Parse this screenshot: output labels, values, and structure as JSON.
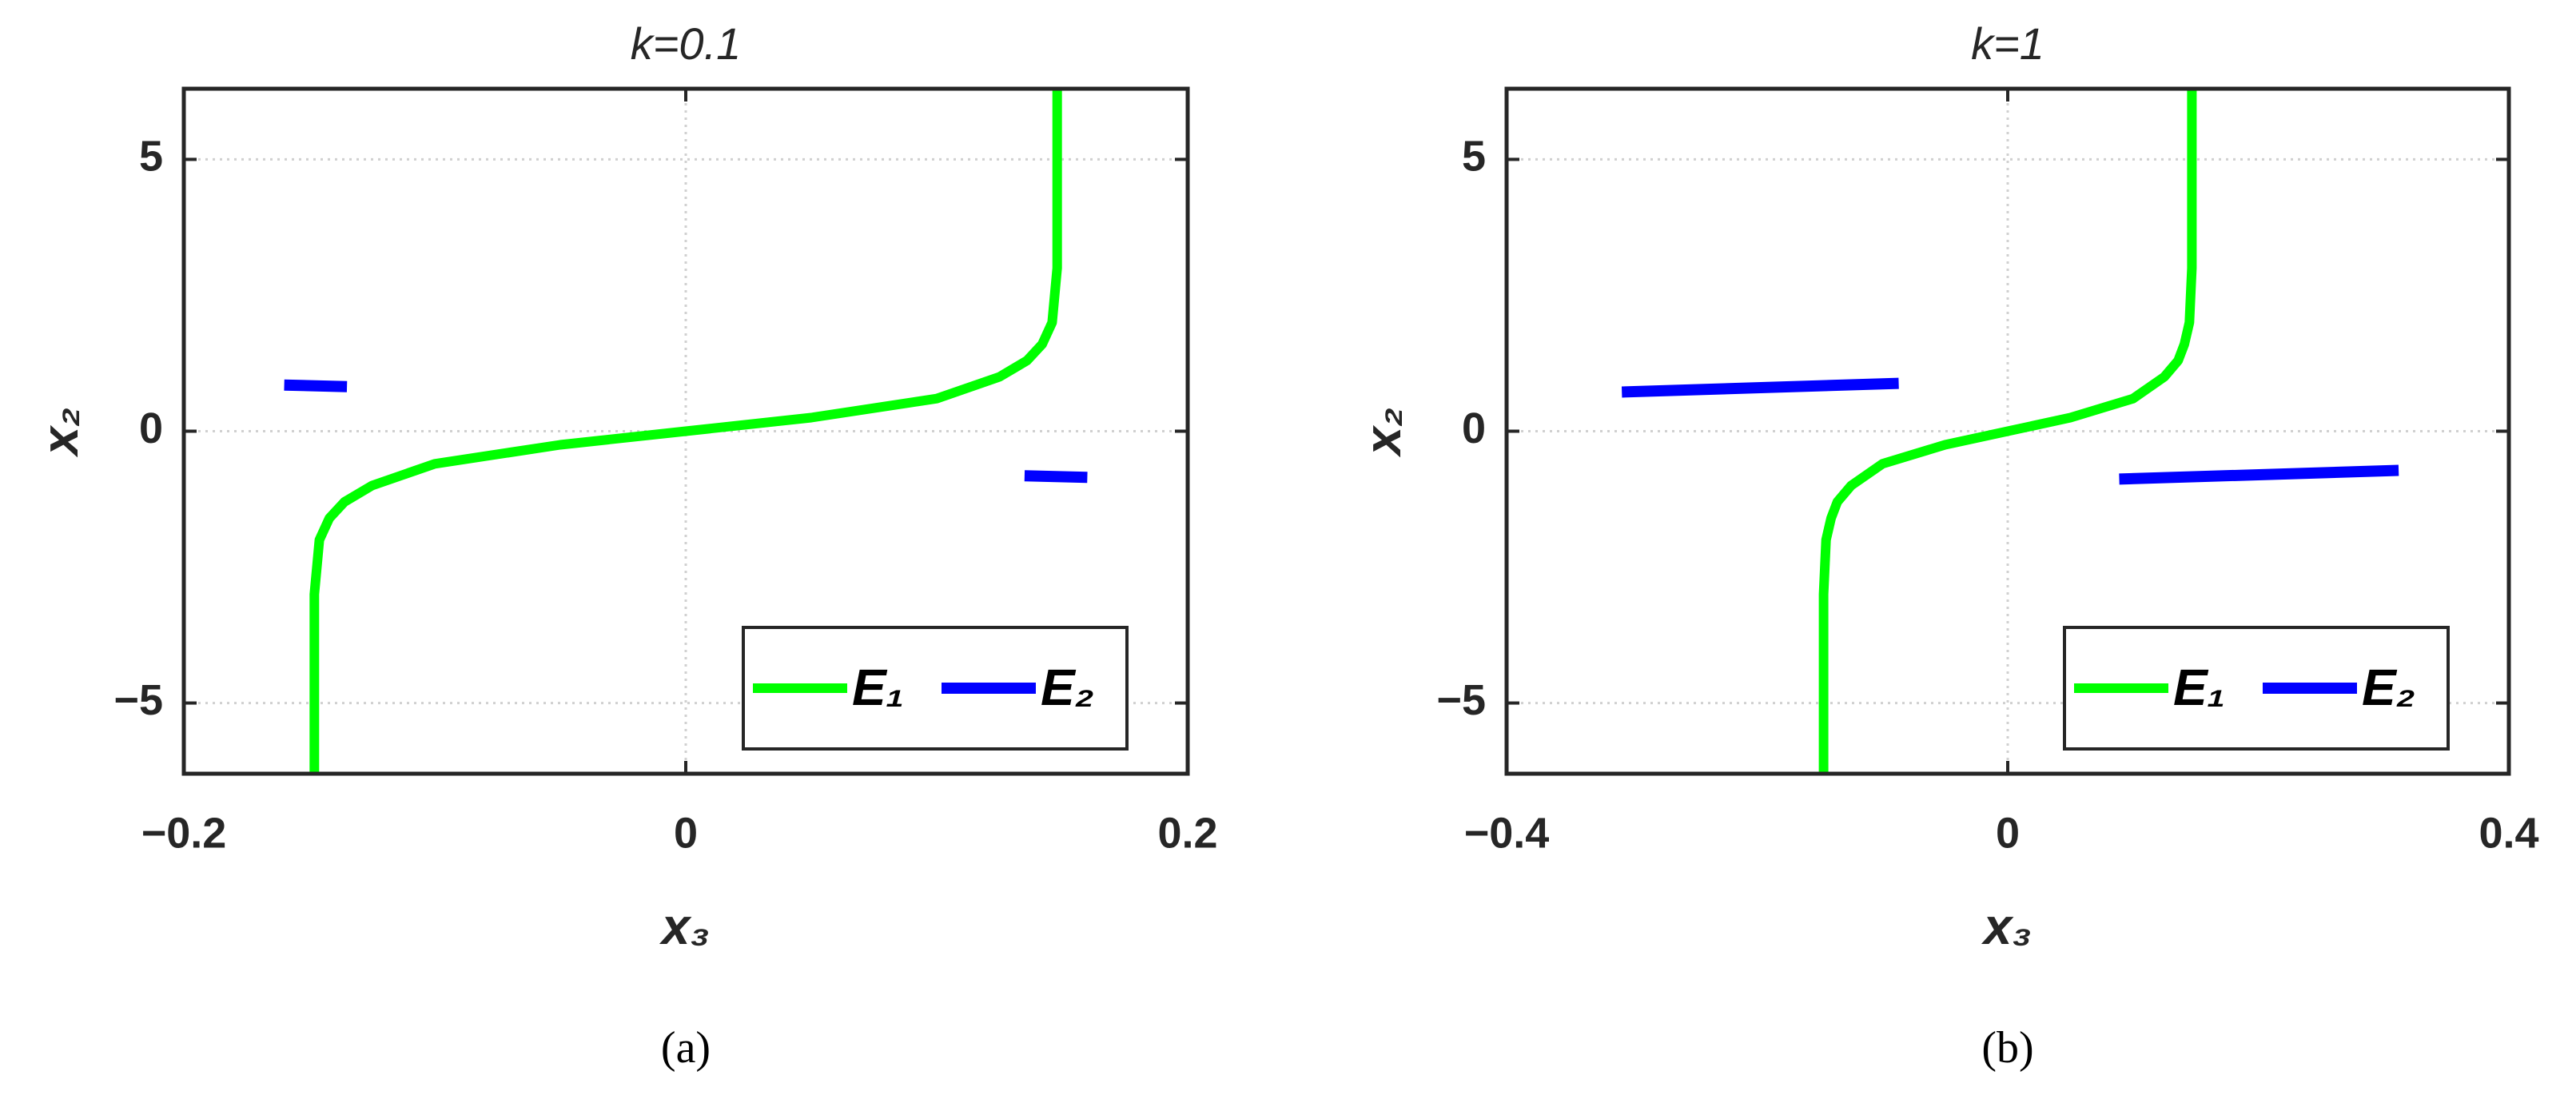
{
  "chart_data": [
    {
      "type": "line",
      "title": "k=0.1",
      "caption": "(a)",
      "xlabel": "x₃",
      "ylabel": "x₂",
      "xlim": [
        -0.2,
        0.2
      ],
      "ylim": [
        -6.3,
        6.3
      ],
      "xticks": [
        {
          "value": -0.2,
          "label": "−0.2"
        },
        0,
        0.2
      ],
      "yticks": [
        {
          "value": -5,
          "label": "−5"
        },
        0,
        5
      ],
      "grid": true,
      "legend": "lower right",
      "series": [
        {
          "name": "E₁",
          "color": "#00ff00",
          "x": [
            -0.148,
            -0.148,
            -0.146,
            -0.142,
            -0.136,
            -0.125,
            -0.1,
            -0.05,
            0,
            0.05,
            0.1,
            0.125,
            0.136,
            0.142,
            0.146,
            0.148,
            0.148
          ],
          "values": [
            -6.3,
            -3,
            -2,
            -1.6,
            -1.3,
            -1,
            -0.6,
            -0.25,
            0,
            0.25,
            0.6,
            1,
            1.3,
            1.6,
            2,
            3,
            6.3
          ]
        },
        {
          "name": "E₂",
          "color": "#0000ff",
          "x": [
            -0.16,
            -0.135,
            null,
            0.135,
            0.16
          ],
          "values": [
            0.85,
            0.82,
            null,
            -0.82,
            -0.85
          ]
        }
      ]
    },
    {
      "type": "line",
      "title": "k=1",
      "caption": "(b)",
      "xlabel": "x₃",
      "ylabel": "x₂",
      "xlim": [
        -0.4,
        0.4
      ],
      "ylim": [
        -6.3,
        6.3
      ],
      "xticks": [
        {
          "value": -0.4,
          "label": "−0.4"
        },
        0,
        0.4
      ],
      "yticks": [
        {
          "value": -5,
          "label": "−5"
        },
        0,
        5
      ],
      "grid": true,
      "legend": "lower right",
      "series": [
        {
          "name": "E₁",
          "color": "#00ff00",
          "x": [
            -0.147,
            -0.147,
            -0.145,
            -0.141,
            -0.136,
            -0.125,
            -0.1,
            -0.05,
            0,
            0.05,
            0.1,
            0.125,
            0.136,
            0.141,
            0.145,
            0.147,
            0.147
          ],
          "values": [
            -6.3,
            -3,
            -2,
            -1.6,
            -1.3,
            -1,
            -0.6,
            -0.25,
            0,
            0.25,
            0.6,
            1,
            1.3,
            1.6,
            2,
            3,
            6.3
          ]
        },
        {
          "name": "E₂",
          "color": "#0000ff",
          "x": [
            -0.308,
            -0.087,
            null,
            0.089,
            0.312
          ],
          "values": [
            0.72,
            0.88,
            null,
            -0.88,
            -0.72
          ]
        }
      ]
    }
  ]
}
